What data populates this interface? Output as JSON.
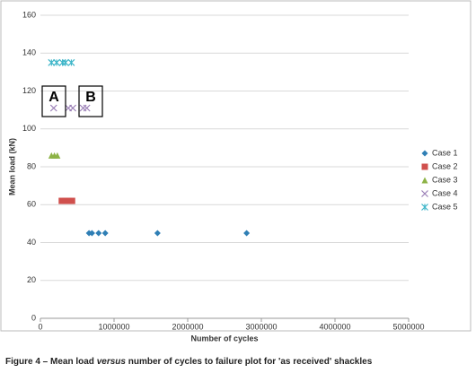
{
  "chart_data": {
    "type": "scatter",
    "xlabel": "Number of cycles",
    "ylabel": "Mean load (kN)",
    "xlim": [
      0,
      5000000
    ],
    "ylim": [
      0,
      160
    ],
    "xticks": [
      0,
      1000000,
      2000000,
      3000000,
      4000000,
      5000000
    ],
    "yticks": [
      0,
      20,
      40,
      60,
      80,
      100,
      120,
      140,
      160
    ],
    "grid": true,
    "legend": "right",
    "series": [
      {
        "name": "Case 1",
        "color": "#2f7fb5",
        "marker": "diamond",
        "x": [
          660000,
          700000,
          790000,
          880000,
          1590000,
          2800000
        ],
        "values": [
          45,
          45,
          45,
          45,
          45,
          45
        ]
      },
      {
        "name": "Case 2",
        "color": "#d0504d",
        "marker": "square",
        "x": [
          290000,
          340000,
          380000,
          430000
        ],
        "values": [
          62,
          62,
          62,
          62
        ]
      },
      {
        "name": "Case 3",
        "color": "#8db346",
        "marker": "triangle",
        "x": [
          150000,
          190000,
          230000
        ],
        "values": [
          86,
          86,
          86
        ]
      },
      {
        "name": "Case 4",
        "color": "#9a7eb6",
        "marker": "x",
        "x": [
          180000,
          380000,
          440000,
          580000,
          630000
        ],
        "values": [
          111,
          111,
          111,
          111,
          111
        ]
      },
      {
        "name": "Case 5",
        "color": "#3fb6c9",
        "marker": "star",
        "x": [
          150000,
          220000,
          300000,
          340000,
          420000
        ],
        "values": [
          135,
          135,
          135,
          135,
          135
        ]
      }
    ],
    "annotations": [
      "A",
      "B"
    ],
    "caption": [
      "Figure 4 – Mean load ",
      "versus",
      " number of cycles to failure plot for 'as received' shackles"
    ]
  }
}
